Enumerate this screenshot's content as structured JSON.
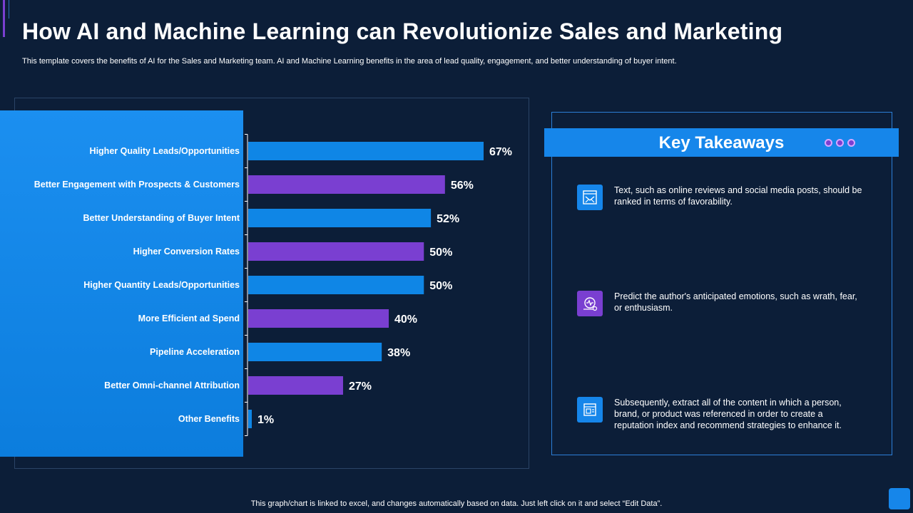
{
  "page": {
    "title": "How AI and Machine Learning can Revolutionize Sales and Marketing",
    "subtitle": "This template covers the benefits of AI for the Sales and Marketing team. AI and Machine Learning benefits in the area of lead quality, engagement, and  better understanding of buyer intent.",
    "footer": "This graph/chart is linked to excel,  and changes automatically based on data. Just left click on it and select “Edit Data”."
  },
  "colors": {
    "background": "#0c1e38",
    "bar_blue": "#0f86e6",
    "bar_purple": "#7a3fd1",
    "panel_blue": "#1686ea"
  },
  "chart_data": {
    "type": "bar",
    "orientation": "horizontal",
    "categories": [
      "Higher Quality Leads/Opportunities",
      "Better Engagement with Prospects & Customers",
      "Better Understanding of Buyer Intent",
      "Higher Conversion Rates",
      "Higher Quantity Leads/Opportunities",
      "More Efficient ad Spend",
      "Pipeline Acceleration",
      "Better Omni-channel Attribution",
      "Other Benefits"
    ],
    "values": [
      67,
      56,
      52,
      50,
      50,
      40,
      38,
      27,
      1
    ],
    "value_labels": [
      "67%",
      "56%",
      "52%",
      "50%",
      "50%",
      "40%",
      "38%",
      "27%",
      "1%"
    ],
    "bar_colors": [
      "#0f86e6",
      "#7a3fd1",
      "#0f86e6",
      "#7a3fd1",
      "#0f86e6",
      "#7a3fd1",
      "#0f86e6",
      "#7a3fd1",
      "#0f86e6"
    ],
    "xlim": [
      0,
      100
    ],
    "title": "",
    "xlabel": "",
    "ylabel": "",
    "grid": false,
    "legend": "none"
  },
  "takeaways": {
    "title": "Key Takeaways",
    "items": [
      {
        "icon": "envelope-document-icon",
        "icon_color": "#1686ea",
        "text": "Text, such as online reviews  and social media posts, should be ranked in terms of favorability."
      },
      {
        "icon": "emotion-analysis-icon",
        "icon_color": "#7a3fd1",
        "text": "Predict the author's anticipated emotions, such as wrath, fear, or enthusiasm."
      },
      {
        "icon": "document-extract-icon",
        "icon_color": "#1686ea",
        "text": "Subsequently, extract all of the content in which a person, brand, or product was referenced  in order to create a reputation index and recommend strategies to enhance it."
      }
    ]
  }
}
